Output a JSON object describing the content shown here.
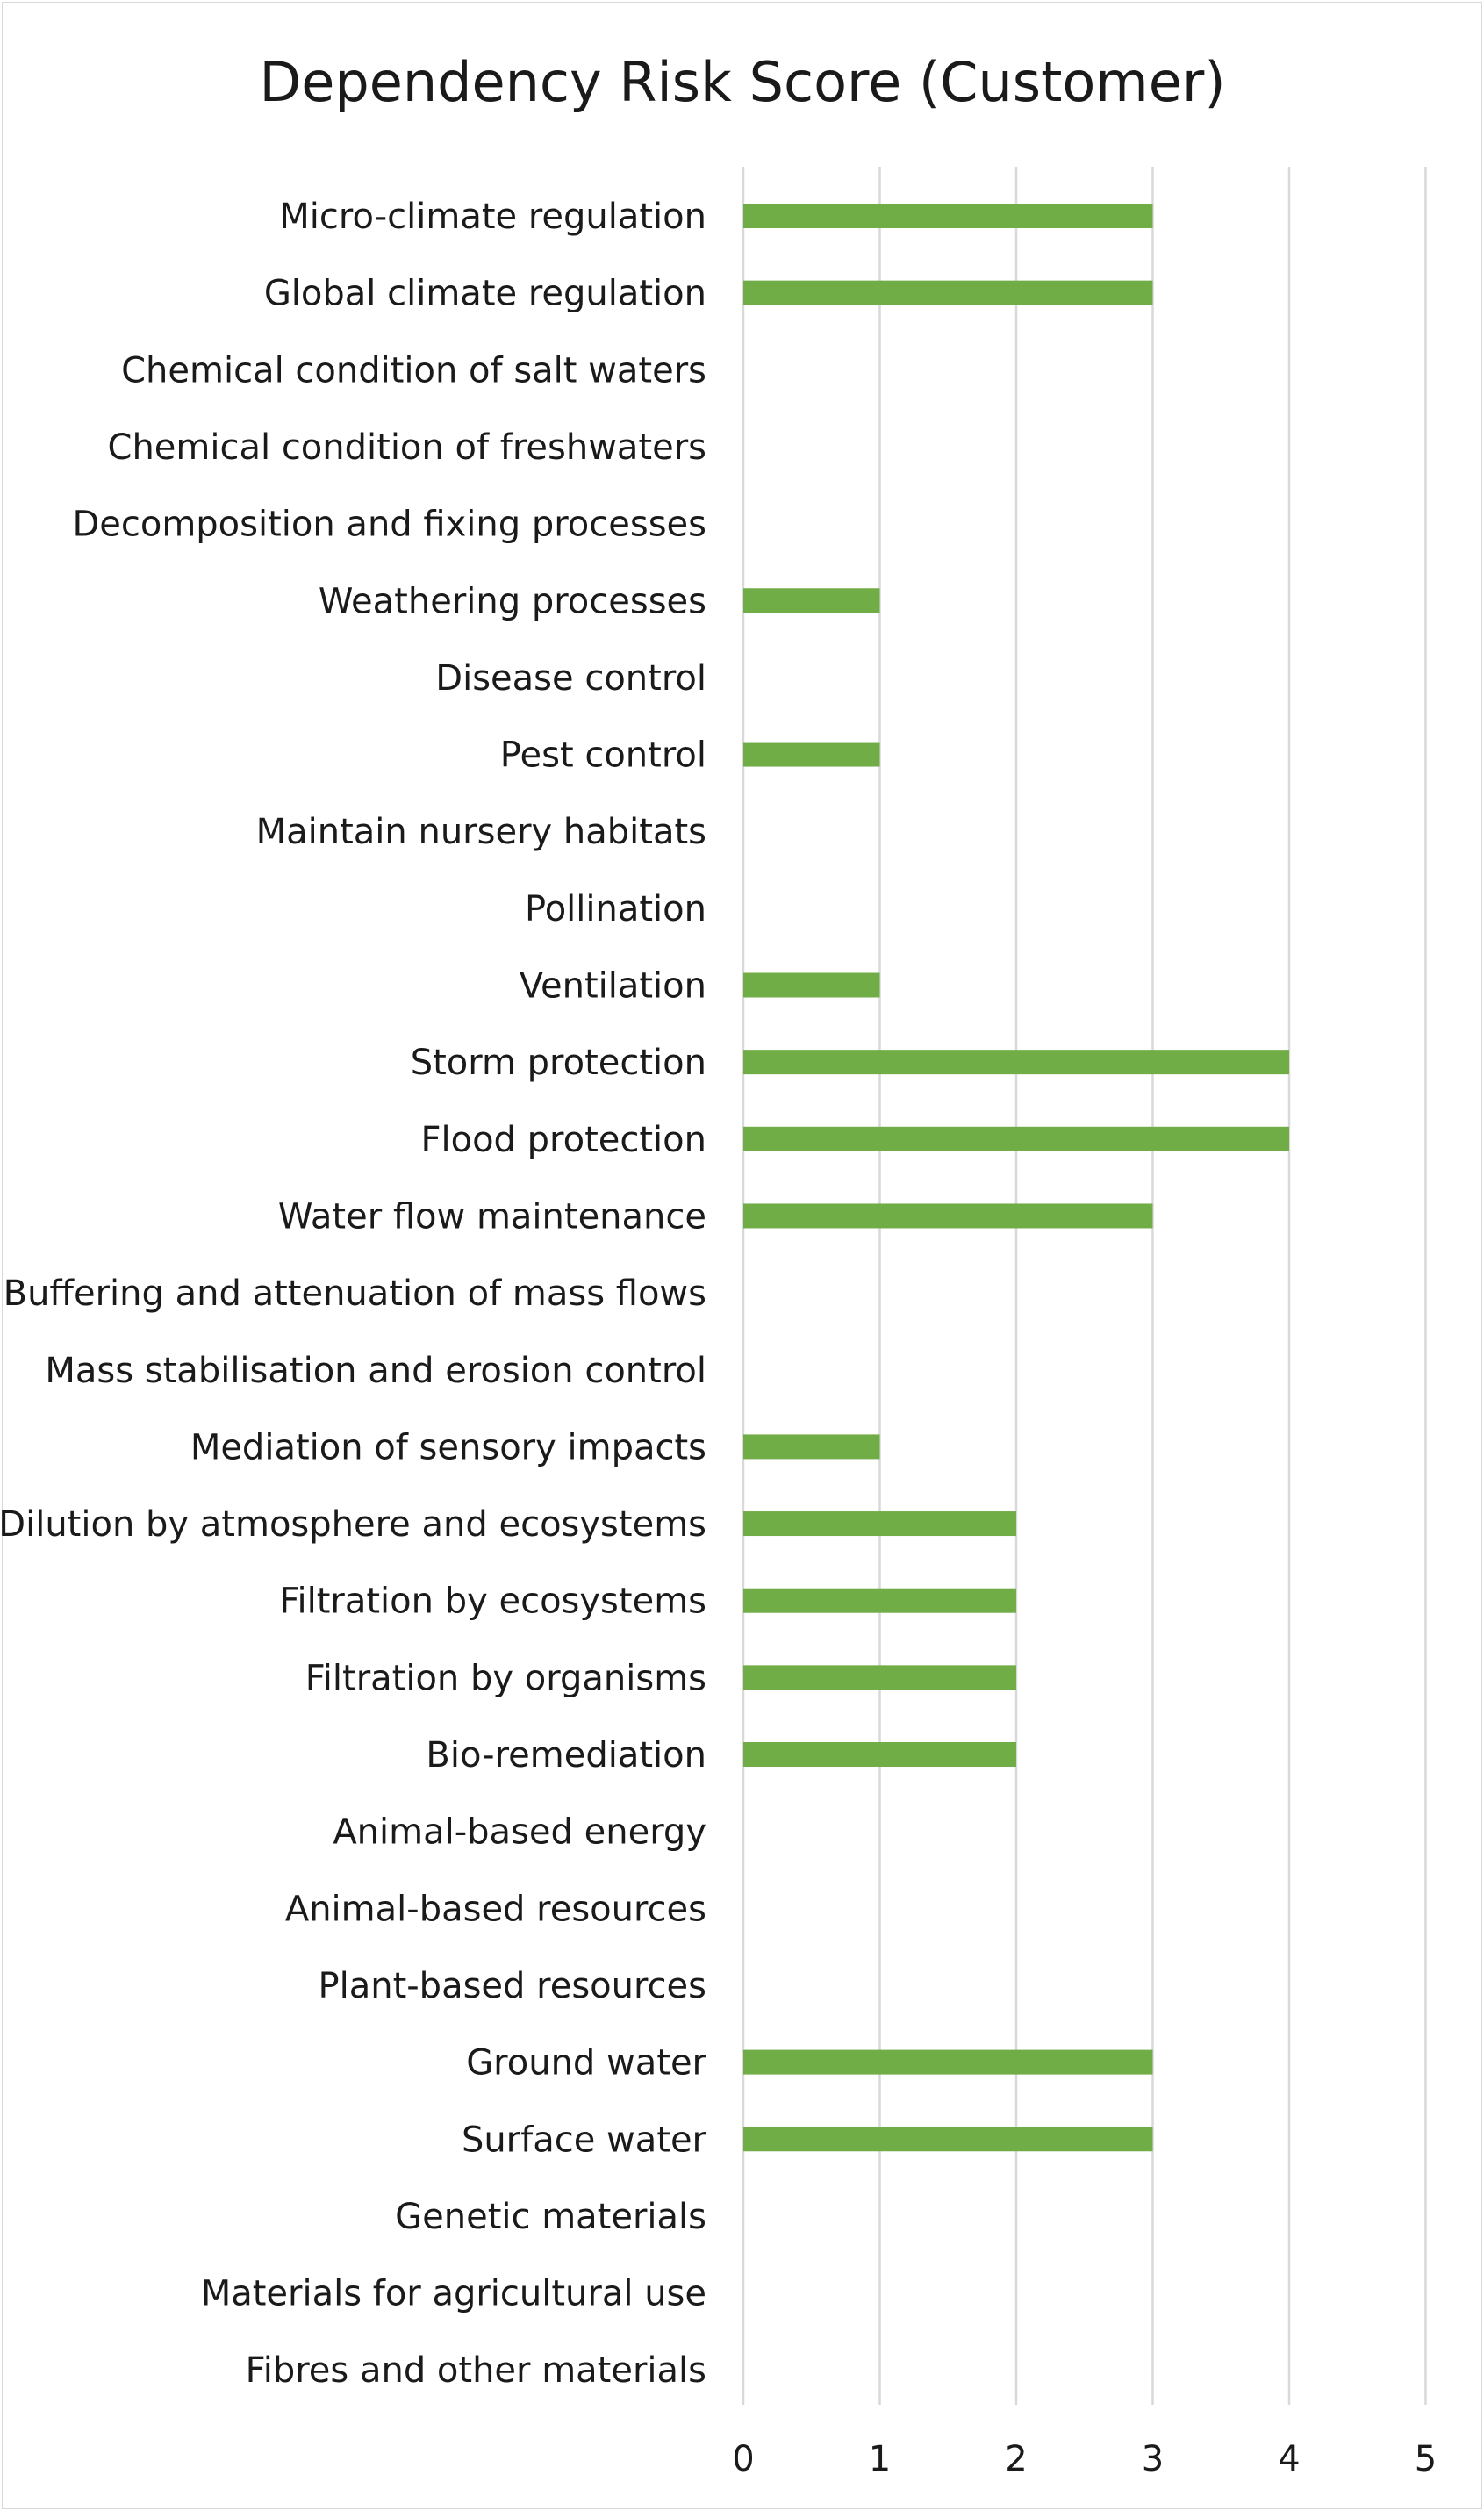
{
  "chart_data": {
    "type": "bar",
    "orientation": "horizontal",
    "title": "Dependency Risk Score (Customer)",
    "xlabel": "",
    "ylabel": "",
    "xlim": [
      0,
      5
    ],
    "xticks": [
      "0",
      "1",
      "2",
      "3",
      "4",
      "5"
    ],
    "grid": true,
    "legend": "none",
    "bar_color": "#70ad47",
    "categories": [
      "Micro-climate regulation",
      "Global climate regulation",
      "Chemical condition of salt waters",
      "Chemical condition of freshwaters",
      "Decomposition and fixing processes",
      "Weathering processes",
      "Disease control",
      "Pest control",
      "Maintain nursery habitats",
      "Pollination",
      "Ventilation",
      "Storm protection",
      "Flood protection",
      "Water flow maintenance",
      "Buffering and attenuation of mass flows",
      "Mass stabilisation and erosion control",
      "Mediation of sensory impacts",
      "Dilution by atmosphere and ecosystems",
      "Filtration by ecosystems",
      "Filtration by organisms",
      "Bio-remediation",
      "Animal-based energy",
      "Animal-based resources",
      "Plant-based resources",
      "Ground water",
      "Surface water",
      "Genetic materials",
      "Materials for agricultural use",
      "Fibres and other materials"
    ],
    "values": [
      3,
      3,
      0,
      0,
      0,
      1,
      0,
      1,
      0,
      0,
      1,
      4,
      4,
      3,
      0,
      0,
      1,
      2,
      2,
      2,
      2,
      0,
      0,
      0,
      3,
      3,
      0,
      0,
      0
    ]
  }
}
